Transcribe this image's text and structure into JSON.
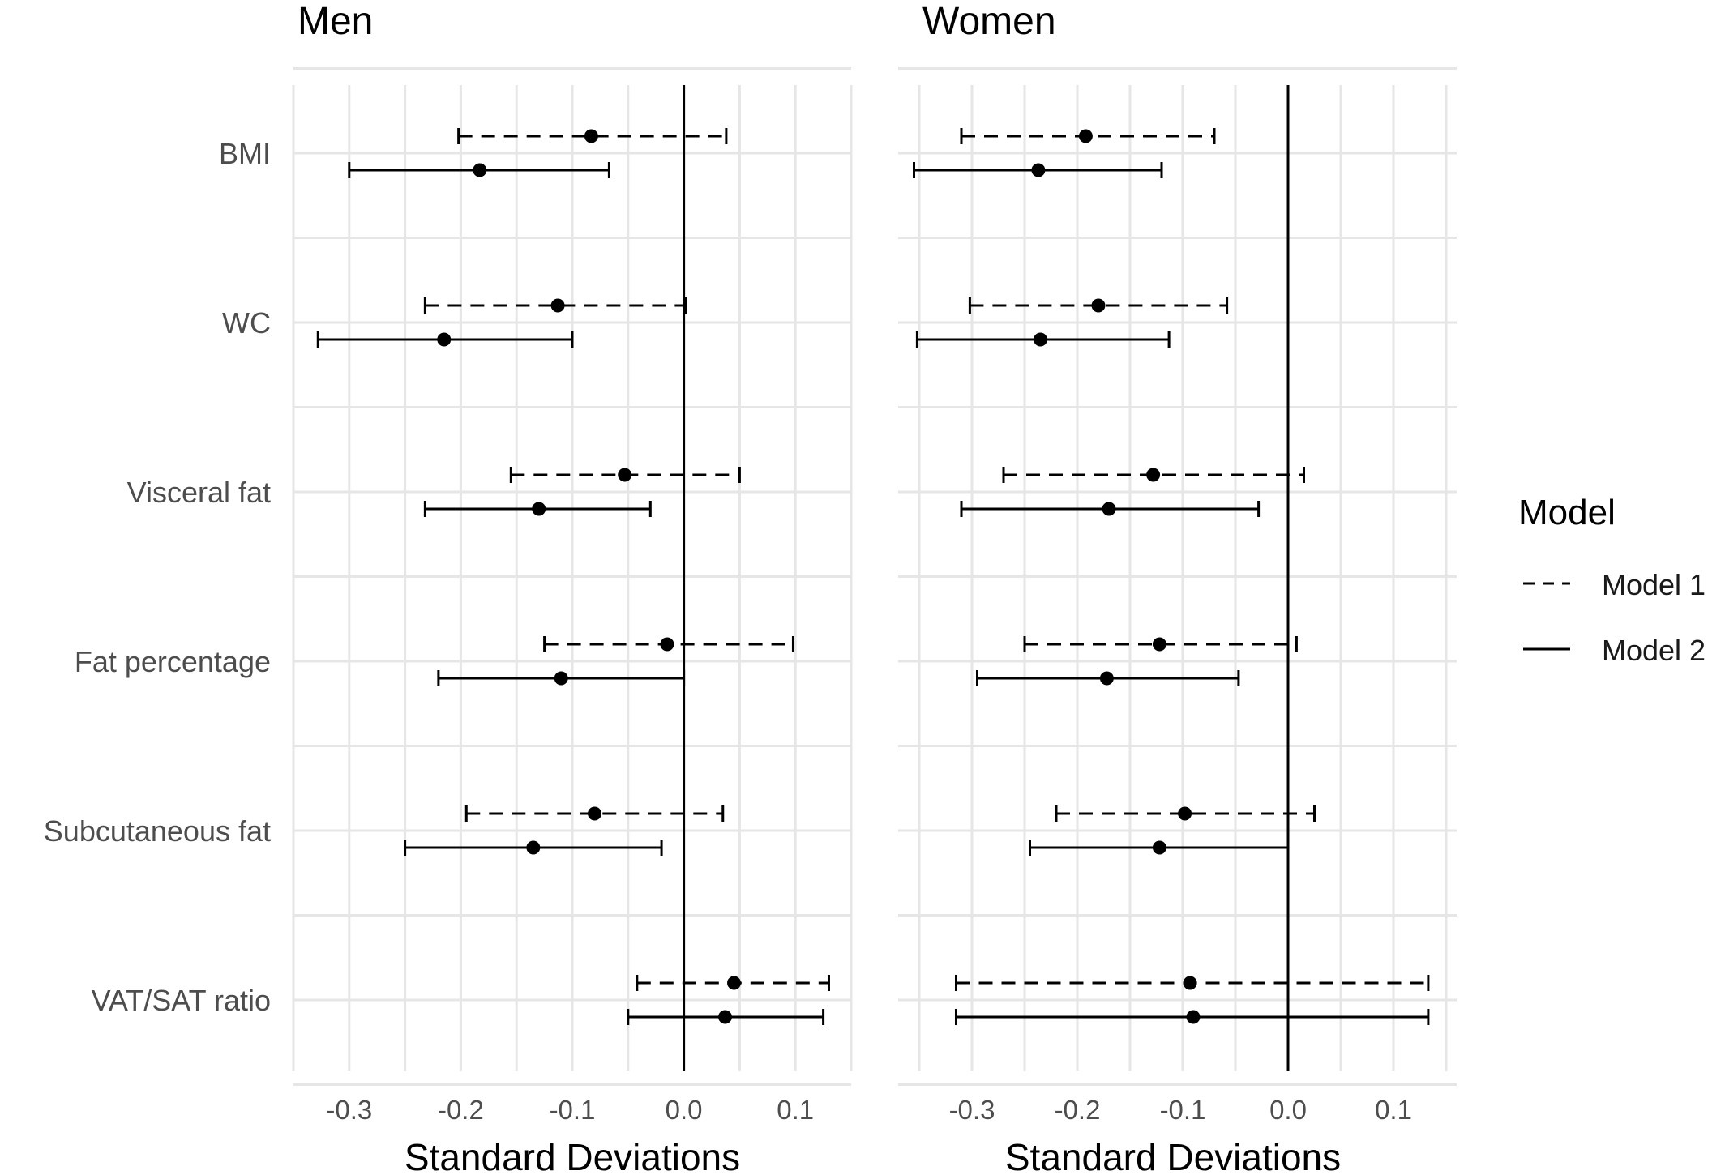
{
  "chart_data": [
    {
      "type": "forest",
      "title": "Men",
      "xlabel": "Standard Deviations",
      "xlim": [
        -0.35,
        0.15
      ],
      "xticks": [
        "-0.3",
        "-0.2",
        "-0.1",
        "0.0",
        "0.1"
      ],
      "tick_values": [
        -0.3,
        -0.2,
        -0.1,
        0.0,
        0.1
      ],
      "categories": [
        "BMI",
        "WC",
        "Visceral fat",
        "Fat percentage",
        "Subcutaneous fat",
        "VAT/SAT ratio"
      ],
      "grid": true,
      "reference_line": 0,
      "series": [
        {
          "name": "Model 1",
          "line": "dashed",
          "points": [
            {
              "category": "BMI",
              "estimate": -0.083,
              "lower": -0.202,
              "upper": 0.038
            },
            {
              "category": "WC",
              "estimate": -0.113,
              "lower": -0.232,
              "upper": 0.002
            },
            {
              "category": "Visceral fat",
              "estimate": -0.053,
              "lower": -0.155,
              "upper": 0.05
            },
            {
              "category": "Fat percentage",
              "estimate": -0.015,
              "lower": -0.125,
              "upper": 0.098
            },
            {
              "category": "Subcutaneous fat",
              "estimate": -0.08,
              "lower": -0.195,
              "upper": 0.035
            },
            {
              "category": "VAT/SAT ratio",
              "estimate": 0.045,
              "lower": -0.042,
              "upper": 0.13
            }
          ]
        },
        {
          "name": "Model 2",
          "line": "solid",
          "points": [
            {
              "category": "BMI",
              "estimate": -0.183,
              "lower": -0.3,
              "upper": -0.067
            },
            {
              "category": "WC",
              "estimate": -0.215,
              "lower": -0.328,
              "upper": -0.1
            },
            {
              "category": "Visceral fat",
              "estimate": -0.13,
              "lower": -0.232,
              "upper": -0.03
            },
            {
              "category": "Fat percentage",
              "estimate": -0.11,
              "lower": -0.22,
              "upper": 0.0
            },
            {
              "category": "Subcutaneous fat",
              "estimate": -0.135,
              "lower": -0.25,
              "upper": -0.02
            },
            {
              "category": "VAT/SAT ratio",
              "estimate": 0.037,
              "lower": -0.05,
              "upper": 0.125
            }
          ]
        }
      ]
    },
    {
      "type": "forest",
      "title": "Women",
      "xlabel": "Standard Deviations",
      "xlim": [
        -0.37,
        0.16
      ],
      "xticks": [
        "-0.3",
        "-0.2",
        "-0.1",
        "0.0",
        "0.1"
      ],
      "tick_values": [
        -0.3,
        -0.2,
        -0.1,
        0.0,
        0.1
      ],
      "categories": [
        "BMI",
        "WC",
        "Visceral fat",
        "Fat percentage",
        "Subcutaneous fat",
        "VAT/SAT ratio"
      ],
      "grid": true,
      "reference_line": 0,
      "series": [
        {
          "name": "Model 1",
          "line": "dashed",
          "points": [
            {
              "category": "BMI",
              "estimate": -0.192,
              "lower": -0.31,
              "upper": -0.07
            },
            {
              "category": "WC",
              "estimate": -0.18,
              "lower": -0.302,
              "upper": -0.058
            },
            {
              "category": "Visceral fat",
              "estimate": -0.128,
              "lower": -0.27,
              "upper": 0.015
            },
            {
              "category": "Fat percentage",
              "estimate": -0.122,
              "lower": -0.25,
              "upper": 0.008
            },
            {
              "category": "Subcutaneous fat",
              "estimate": -0.098,
              "lower": -0.22,
              "upper": 0.025
            },
            {
              "category": "VAT/SAT ratio",
              "estimate": -0.093,
              "lower": -0.315,
              "upper": 0.133
            }
          ]
        },
        {
          "name": "Model 2",
          "line": "solid",
          "points": [
            {
              "category": "BMI",
              "estimate": -0.237,
              "lower": -0.355,
              "upper": -0.12
            },
            {
              "category": "WC",
              "estimate": -0.235,
              "lower": -0.352,
              "upper": -0.113
            },
            {
              "category": "Visceral fat",
              "estimate": -0.17,
              "lower": -0.31,
              "upper": -0.028
            },
            {
              "category": "Fat percentage",
              "estimate": -0.172,
              "lower": -0.295,
              "upper": -0.047
            },
            {
              "category": "Subcutaneous fat",
              "estimate": -0.122,
              "lower": -0.245,
              "upper": 0.0
            },
            {
              "category": "VAT/SAT ratio",
              "estimate": -0.09,
              "lower": -0.315,
              "upper": 0.133
            }
          ]
        }
      ]
    }
  ],
  "legend": {
    "title": "Model",
    "placement": "right",
    "items": [
      {
        "label": "Model 1",
        "line": "dashed"
      },
      {
        "label": "Model 2",
        "line": "solid"
      }
    ]
  },
  "colors": {
    "marks": "#000000",
    "grid": "#e6e6e6",
    "text": "#1a1a1a",
    "tick_text": "#4d4d4d"
  }
}
